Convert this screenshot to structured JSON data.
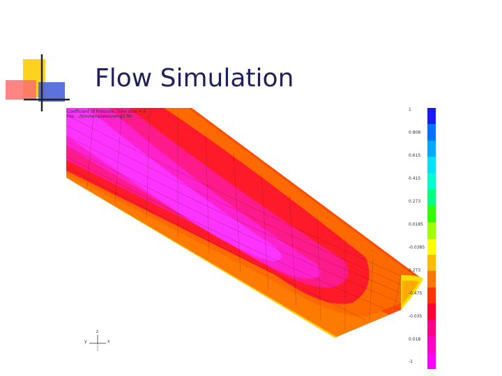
{
  "slide": {
    "title": "Flow Simulation"
  },
  "plot": {
    "caption_line1": "Coefficient of Pressure, Time step = 0",
    "caption_line2": "File: ../Sim/templates/wing3.fld",
    "colorbar_labels": [
      "1",
      "0.808",
      "0.615",
      "0.415",
      "0.273",
      "0.0185",
      "-0.0385",
      "0.273",
      "-0.475",
      "-0.035",
      "0.018",
      "-1"
    ],
    "colorbar_colors": [
      "#1a1aff",
      "#0070ff",
      "#00a8ff",
      "#00e0ff",
      "#00ffd0",
      "#00ff80",
      "#33ff00",
      "#a0ff00",
      "#ffff00",
      "#ffbb00",
      "#ff7700",
      "#ff3300",
      "#ff0033",
      "#ff0088",
      "#ff00cc",
      "#ff00ff"
    ],
    "axes_labels": {
      "up": "z",
      "left": "y",
      "right": "x"
    }
  }
}
